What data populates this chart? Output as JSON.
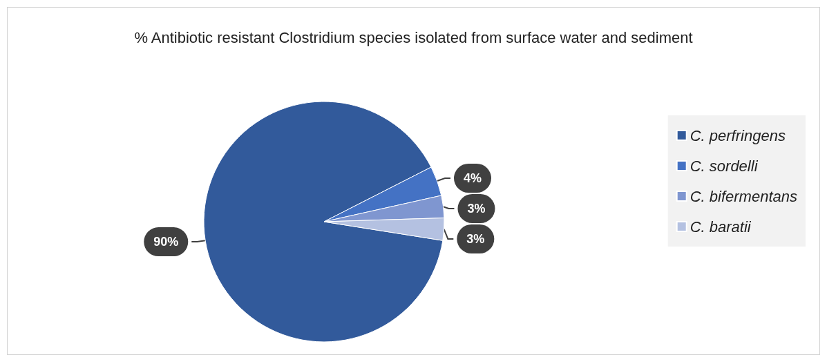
{
  "chart_data": {
    "type": "pie",
    "title": "% Antibiotic resistant Clostridium species isolated from surface water and sediment",
    "categories": [
      "C. perfringens",
      "C. sordelli",
      "C. bifermentans",
      "C. baratii"
    ],
    "values": [
      90,
      4,
      3,
      3
    ],
    "colors": [
      "#325a9b",
      "#4472c4",
      "#7f96d0",
      "#b4c1e1"
    ],
    "value_labels": [
      "90%",
      "4%",
      "3%",
      "3%"
    ],
    "legend": "right"
  }
}
